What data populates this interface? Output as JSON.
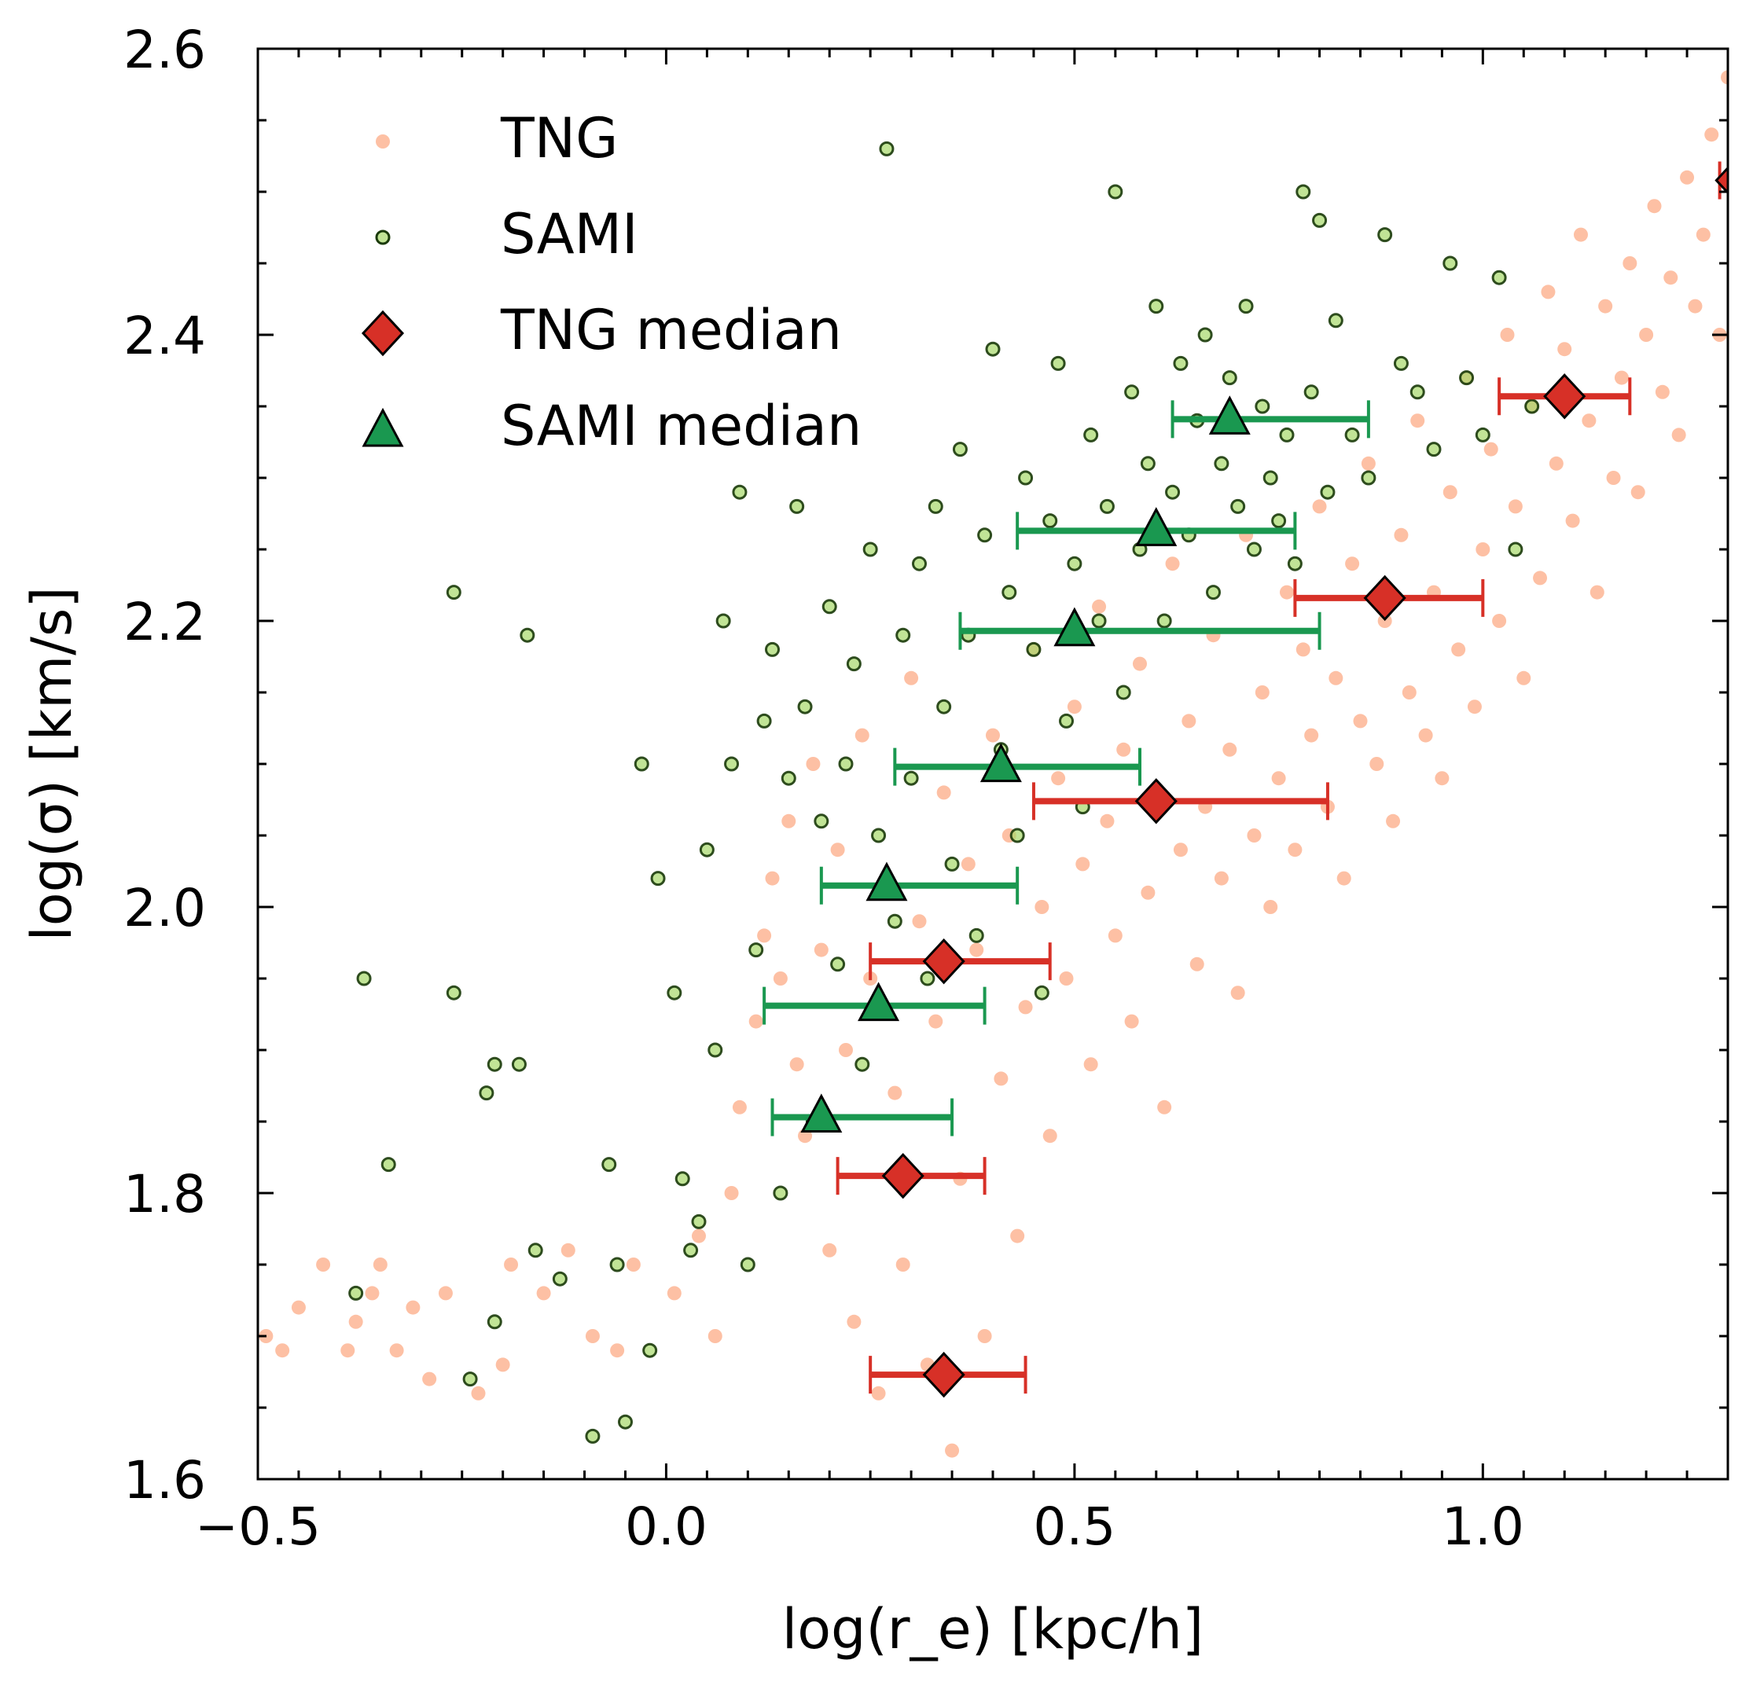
{
  "chart_data": {
    "type": "scatter",
    "title": "",
    "xlabel": "log(r_e) [kpc/h]",
    "ylabel": "log(σ) [km/s]",
    "xlim": [
      -0.5,
      1.3
    ],
    "ylim": [
      1.6,
      2.6
    ],
    "xticks": [
      -0.5,
      0.0,
      0.5,
      1.0
    ],
    "xtick_labels": [
      "−0.5",
      "0.0",
      "0.5",
      "1.0"
    ],
    "yticks": [
      1.6,
      1.8,
      2.0,
      2.2,
      2.4,
      2.6
    ],
    "ytick_labels": [
      "1.6",
      "1.8",
      "2.0",
      "2.2",
      "2.4",
      "2.6"
    ],
    "grid": false,
    "legend_position": "top-left",
    "legend": [
      "TNG",
      "SAMI",
      "TNG median",
      "SAMI median"
    ],
    "colors": {
      "tng": "#fc8d59",
      "sami_face": "#a6d96a",
      "sami_edge": "#1a3a0a",
      "tng_median": "#d73027",
      "sami_median": "#1a9850"
    },
    "tng_median": [
      {
        "x": 0.34,
        "y": 1.673,
        "xerr": [
          0.25,
          0.44
        ]
      },
      {
        "x": 0.29,
        "y": 1.812,
        "xerr": [
          0.21,
          0.39
        ]
      },
      {
        "x": 0.34,
        "y": 1.962,
        "xerr": [
          0.25,
          0.47
        ]
      },
      {
        "x": 0.6,
        "y": 2.074,
        "xerr": [
          0.45,
          0.81
        ]
      },
      {
        "x": 0.88,
        "y": 2.216,
        "xerr": [
          0.77,
          1.0
        ]
      },
      {
        "x": 1.1,
        "y": 2.357,
        "xerr": [
          1.02,
          1.18
        ]
      },
      {
        "x": 1.31,
        "y": 2.508,
        "xerr": [
          1.29,
          1.33
        ]
      }
    ],
    "sami_median": [
      {
        "x": 0.19,
        "y": 1.853,
        "xerr": [
          0.13,
          0.35
        ]
      },
      {
        "x": 0.26,
        "y": 1.931,
        "xerr": [
          0.12,
          0.39
        ]
      },
      {
        "x": 0.27,
        "y": 2.015,
        "xerr": [
          0.19,
          0.43
        ]
      },
      {
        "x": 0.41,
        "y": 2.098,
        "xerr": [
          0.28,
          0.58
        ]
      },
      {
        "x": 0.5,
        "y": 2.193,
        "xerr": [
          0.36,
          0.8
        ]
      },
      {
        "x": 0.6,
        "y": 2.263,
        "xerr": [
          0.43,
          0.77
        ]
      },
      {
        "x": 0.69,
        "y": 2.341,
        "xerr": [
          0.62,
          0.86
        ]
      }
    ],
    "tng_points": [
      [
        -0.49,
        1.7
      ],
      [
        -0.47,
        1.69
      ],
      [
        -0.45,
        1.72
      ],
      [
        -0.42,
        1.75
      ],
      [
        -0.39,
        1.69
      ],
      [
        -0.38,
        1.71
      ],
      [
        -0.36,
        1.73
      ],
      [
        -0.35,
        1.75
      ],
      [
        -0.33,
        1.69
      ],
      [
        -0.31,
        1.72
      ],
      [
        -0.29,
        1.67
      ],
      [
        -0.27,
        1.73
      ],
      [
        -0.23,
        1.66
      ],
      [
        -0.2,
        1.68
      ],
      [
        -0.19,
        1.75
      ],
      [
        -0.15,
        1.73
      ],
      [
        -0.12,
        1.76
      ],
      [
        -0.09,
        1.7
      ],
      [
        -0.06,
        1.69
      ],
      [
        -0.04,
        1.75
      ],
      [
        0.01,
        1.73
      ],
      [
        0.04,
        1.77
      ],
      [
        0.06,
        1.7
      ],
      [
        0.08,
        1.8
      ],
      [
        0.09,
        1.86
      ],
      [
        0.11,
        1.92
      ],
      [
        0.12,
        1.98
      ],
      [
        0.13,
        2.02
      ],
      [
        0.14,
        1.95
      ],
      [
        0.15,
        2.06
      ],
      [
        0.16,
        1.89
      ],
      [
        0.17,
        1.84
      ],
      [
        0.18,
        2.1
      ],
      [
        0.19,
        1.97
      ],
      [
        0.2,
        1.76
      ],
      [
        0.21,
        2.04
      ],
      [
        0.22,
        1.9
      ],
      [
        0.23,
        1.71
      ],
      [
        0.24,
        2.12
      ],
      [
        0.25,
        1.95
      ],
      [
        0.26,
        1.66
      ],
      [
        0.27,
        2.02
      ],
      [
        0.28,
        1.87
      ],
      [
        0.29,
        1.75
      ],
      [
        0.3,
        2.16
      ],
      [
        0.31,
        1.99
      ],
      [
        0.32,
        1.68
      ],
      [
        0.33,
        1.92
      ],
      [
        0.34,
        2.08
      ],
      [
        0.35,
        1.62
      ],
      [
        0.36,
        1.81
      ],
      [
        0.37,
        2.03
      ],
      [
        0.38,
        1.97
      ],
      [
        0.39,
        1.7
      ],
      [
        0.4,
        2.12
      ],
      [
        0.41,
        1.88
      ],
      [
        0.42,
        2.05
      ],
      [
        0.43,
        1.77
      ],
      [
        0.44,
        1.93
      ],
      [
        0.45,
        2.18
      ],
      [
        0.46,
        2.0
      ],
      [
        0.47,
        1.84
      ],
      [
        0.48,
        2.09
      ],
      [
        0.49,
        1.95
      ],
      [
        0.5,
        2.14
      ],
      [
        0.51,
        2.03
      ],
      [
        0.52,
        1.89
      ],
      [
        0.53,
        2.21
      ],
      [
        0.54,
        2.06
      ],
      [
        0.55,
        1.98
      ],
      [
        0.56,
        2.11
      ],
      [
        0.57,
        1.92
      ],
      [
        0.58,
        2.17
      ],
      [
        0.59,
        2.01
      ],
      [
        0.6,
        2.08
      ],
      [
        0.61,
        1.86
      ],
      [
        0.62,
        2.24
      ],
      [
        0.63,
        2.04
      ],
      [
        0.64,
        2.13
      ],
      [
        0.65,
        1.96
      ],
      [
        0.66,
        2.07
      ],
      [
        0.67,
        2.19
      ],
      [
        0.68,
        2.02
      ],
      [
        0.69,
        2.11
      ],
      [
        0.7,
        1.94
      ],
      [
        0.71,
        2.26
      ],
      [
        0.72,
        2.05
      ],
      [
        0.73,
        2.15
      ],
      [
        0.74,
        2.0
      ],
      [
        0.75,
        2.09
      ],
      [
        0.76,
        2.22
      ],
      [
        0.77,
        2.04
      ],
      [
        0.78,
        2.18
      ],
      [
        0.79,
        2.12
      ],
      [
        0.8,
        2.28
      ],
      [
        0.81,
        2.07
      ],
      [
        0.82,
        2.16
      ],
      [
        0.83,
        2.02
      ],
      [
        0.84,
        2.24
      ],
      [
        0.85,
        2.13
      ],
      [
        0.86,
        2.31
      ],
      [
        0.87,
        2.1
      ],
      [
        0.88,
        2.2
      ],
      [
        0.89,
        2.06
      ],
      [
        0.9,
        2.26
      ],
      [
        0.91,
        2.15
      ],
      [
        0.92,
        2.34
      ],
      [
        0.93,
        2.12
      ],
      [
        0.94,
        2.22
      ],
      [
        0.95,
        2.09
      ],
      [
        0.96,
        2.29
      ],
      [
        0.97,
        2.18
      ],
      [
        0.98,
        2.37
      ],
      [
        0.99,
        2.14
      ],
      [
        1.0,
        2.25
      ],
      [
        1.01,
        2.32
      ],
      [
        1.02,
        2.2
      ],
      [
        1.03,
        2.4
      ],
      [
        1.04,
        2.28
      ],
      [
        1.05,
        2.16
      ],
      [
        1.06,
        2.35
      ],
      [
        1.07,
        2.23
      ],
      [
        1.08,
        2.43
      ],
      [
        1.09,
        2.31
      ],
      [
        1.1,
        2.39
      ],
      [
        1.11,
        2.27
      ],
      [
        1.12,
        2.47
      ],
      [
        1.13,
        2.34
      ],
      [
        1.14,
        2.22
      ],
      [
        1.15,
        2.42
      ],
      [
        1.16,
        2.3
      ],
      [
        1.17,
        2.37
      ],
      [
        1.18,
        2.45
      ],
      [
        1.19,
        2.29
      ],
      [
        1.2,
        2.4
      ],
      [
        1.21,
        2.49
      ],
      [
        1.22,
        2.36
      ],
      [
        1.23,
        2.44
      ],
      [
        1.24,
        2.33
      ],
      [
        1.25,
        2.51
      ],
      [
        1.26,
        2.42
      ],
      [
        1.27,
        2.47
      ],
      [
        1.28,
        2.54
      ],
      [
        1.29,
        2.4
      ],
      [
        1.3,
        2.58
      ]
    ],
    "sami_points": [
      [
        -0.38,
        1.73
      ],
      [
        -0.37,
        1.95
      ],
      [
        -0.34,
        1.82
      ],
      [
        -0.26,
        2.22
      ],
      [
        -0.26,
        1.94
      ],
      [
        -0.24,
        1.67
      ],
      [
        -0.22,
        1.87
      ],
      [
        -0.21,
        1.89
      ],
      [
        -0.21,
        1.71
      ],
      [
        -0.18,
        1.89
      ],
      [
        -0.17,
        2.19
      ],
      [
        -0.16,
        1.76
      ],
      [
        -0.13,
        1.74
      ],
      [
        -0.09,
        1.63
      ],
      [
        -0.07,
        1.82
      ],
      [
        -0.06,
        1.75
      ],
      [
        -0.05,
        1.64
      ],
      [
        -0.03,
        2.1
      ],
      [
        -0.02,
        1.69
      ],
      [
        -0.01,
        2.02
      ],
      [
        0.01,
        1.94
      ],
      [
        0.02,
        1.81
      ],
      [
        0.03,
        1.76
      ],
      [
        0.04,
        1.78
      ],
      [
        0.05,
        2.04
      ],
      [
        0.06,
        1.9
      ],
      [
        0.07,
        2.2
      ],
      [
        0.08,
        2.1
      ],
      [
        0.09,
        2.29
      ],
      [
        0.1,
        1.75
      ],
      [
        0.11,
        1.97
      ],
      [
        0.12,
        2.13
      ],
      [
        0.13,
        2.18
      ],
      [
        0.14,
        1.8
      ],
      [
        0.15,
        2.09
      ],
      [
        0.16,
        2.28
      ],
      [
        0.17,
        2.14
      ],
      [
        0.18,
        1.85
      ],
      [
        0.19,
        2.06
      ],
      [
        0.2,
        2.21
      ],
      [
        0.21,
        1.96
      ],
      [
        0.22,
        2.1
      ],
      [
        0.23,
        2.17
      ],
      [
        0.24,
        1.89
      ],
      [
        0.25,
        2.25
      ],
      [
        0.26,
        2.05
      ],
      [
        0.27,
        2.53
      ],
      [
        0.28,
        1.99
      ],
      [
        0.29,
        2.19
      ],
      [
        0.3,
        2.09
      ],
      [
        0.31,
        2.24
      ],
      [
        0.32,
        1.95
      ],
      [
        0.33,
        2.28
      ],
      [
        0.34,
        2.14
      ],
      [
        0.35,
        2.03
      ],
      [
        0.36,
        2.32
      ],
      [
        0.37,
        2.19
      ],
      [
        0.38,
        1.98
      ],
      [
        0.39,
        2.26
      ],
      [
        0.4,
        2.39
      ],
      [
        0.41,
        2.11
      ],
      [
        0.42,
        2.22
      ],
      [
        0.43,
        2.05
      ],
      [
        0.44,
        2.3
      ],
      [
        0.45,
        2.18
      ],
      [
        0.46,
        1.94
      ],
      [
        0.47,
        2.27
      ],
      [
        0.48,
        2.38
      ],
      [
        0.49,
        2.13
      ],
      [
        0.5,
        2.24
      ],
      [
        0.51,
        2.07
      ],
      [
        0.52,
        2.33
      ],
      [
        0.53,
        2.2
      ],
      [
        0.54,
        2.28
      ],
      [
        0.55,
        2.5
      ],
      [
        0.56,
        2.15
      ],
      [
        0.57,
        2.36
      ],
      [
        0.58,
        2.25
      ],
      [
        0.59,
        2.31
      ],
      [
        0.6,
        2.42
      ],
      [
        0.61,
        2.2
      ],
      [
        0.62,
        2.29
      ],
      [
        0.63,
        2.38
      ],
      [
        0.64,
        2.26
      ],
      [
        0.65,
        2.34
      ],
      [
        0.66,
        2.4
      ],
      [
        0.67,
        2.22
      ],
      [
        0.68,
        2.31
      ],
      [
        0.69,
        2.37
      ],
      [
        0.7,
        2.28
      ],
      [
        0.71,
        2.42
      ],
      [
        0.72,
        2.25
      ],
      [
        0.73,
        2.35
      ],
      [
        0.74,
        2.3
      ],
      [
        0.75,
        2.27
      ],
      [
        0.76,
        2.33
      ],
      [
        0.77,
        2.24
      ],
      [
        0.78,
        2.5
      ],
      [
        0.79,
        2.36
      ],
      [
        0.8,
        2.48
      ],
      [
        0.81,
        2.29
      ],
      [
        0.82,
        2.41
      ],
      [
        0.84,
        2.33
      ],
      [
        0.86,
        2.3
      ],
      [
        0.88,
        2.47
      ],
      [
        0.9,
        2.38
      ],
      [
        0.92,
        2.36
      ],
      [
        0.94,
        2.32
      ],
      [
        0.96,
        2.45
      ],
      [
        0.98,
        2.37
      ],
      [
        1.0,
        2.33
      ],
      [
        1.02,
        2.44
      ],
      [
        1.04,
        2.25
      ],
      [
        1.06,
        2.35
      ]
    ]
  }
}
